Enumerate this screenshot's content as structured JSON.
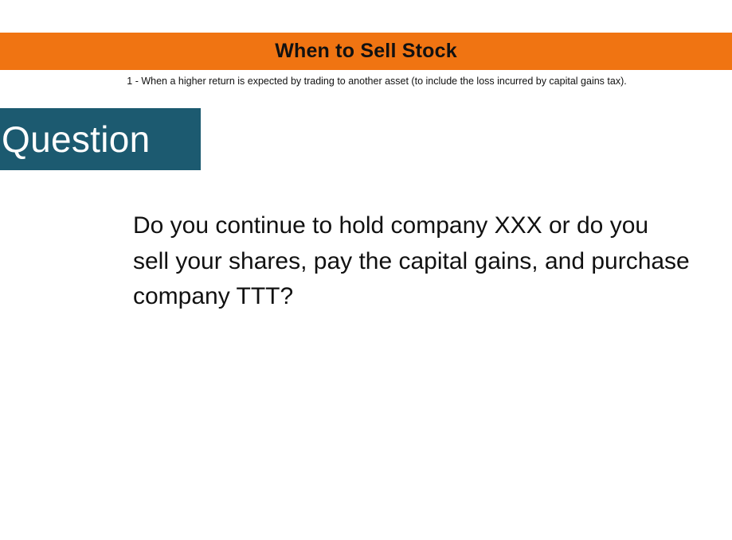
{
  "header": {
    "title": "When to Sell Stock",
    "banner_color": "#f07412"
  },
  "rule": {
    "text": "1 - When a higher return is expected by trading to another asset (to include the loss incurred by capital gains tax)."
  },
  "section": {
    "label": "Question",
    "box_color": "#1c5a70"
  },
  "body": {
    "question": "Do you continue to hold company XXX or do you sell your shares, pay the capital gains, and purchase company TTT?"
  }
}
